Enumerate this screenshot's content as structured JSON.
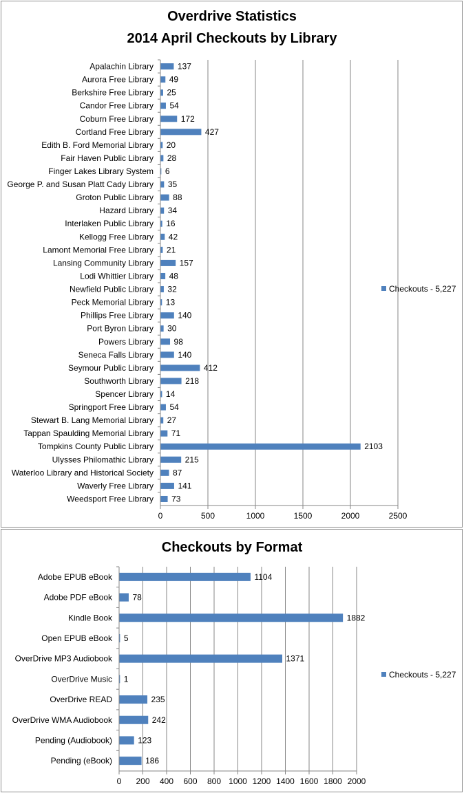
{
  "chart_data": [
    {
      "type": "bar",
      "orientation": "horizontal",
      "title": [
        "Overdrive Statistics",
        "2014 April Checkouts by Library"
      ],
      "categories": [
        "Apalachin Library",
        "Aurora Free Library",
        "Berkshire Free Library",
        "Candor Free Library",
        "Coburn Free Library",
        "Cortland Free Library",
        "Edith B. Ford Memorial Library",
        "Fair Haven Public Library",
        "Finger Lakes Library System",
        "George P. and Susan Platt Cady Library",
        "Groton Public Library",
        "Hazard Library",
        "Interlaken Public Library",
        "Kellogg Free Library",
        "Lamont Memorial Free Library",
        "Lansing Community Library",
        "Lodi Whittier Library",
        "Newfield Public Library",
        "Peck Memorial Library",
        "Phillips Free Library",
        "Port Byron Library",
        "Powers Library",
        "Seneca Falls Library",
        "Seymour Public Library",
        "Southworth Library",
        "Spencer Library",
        "Springport Free Library",
        "Stewart B. Lang Memorial Library",
        "Tappan Spaulding Memorial Library",
        "Tompkins County Public Library",
        "Ulysses Philomathic Library",
        "Waterloo Library and Historical Society",
        "Waverly Free Library",
        "Weedsport Free Library"
      ],
      "series": [
        {
          "name": "Checkouts - 5,227",
          "values": [
            137,
            49,
            25,
            54,
            172,
            427,
            20,
            28,
            6,
            35,
            88,
            34,
            16,
            42,
            21,
            157,
            48,
            32,
            13,
            140,
            30,
            98,
            140,
            412,
            218,
            14,
            54,
            27,
            71,
            2103,
            215,
            87,
            141,
            73
          ]
        }
      ],
      "xlim": [
        0,
        2500
      ],
      "xticks": [
        "0",
        "500",
        "1000",
        "1500",
        "2000",
        "2500"
      ],
      "grid": true,
      "legend": "right",
      "color": "#4f81bd"
    },
    {
      "type": "bar",
      "orientation": "horizontal",
      "title": [
        "Checkouts by Format"
      ],
      "categories": [
        "Adobe EPUB eBook",
        "Adobe PDF eBook",
        "Kindle Book",
        "Open EPUB eBook",
        "OverDrive MP3 Audiobook",
        "OverDrive Music",
        "OverDrive READ",
        "OverDrive WMA Audiobook",
        "Pending (Audiobook)",
        "Pending (eBook)"
      ],
      "series": [
        {
          "name": "Checkouts - 5,227",
          "values": [
            1104,
            78,
            1882,
            5,
            1371,
            1,
            235,
            242,
            123,
            186
          ]
        }
      ],
      "xlim": [
        0,
        2000
      ],
      "xticks": [
        "0",
        "200",
        "400",
        "600",
        "800",
        "1000",
        "1200",
        "1400",
        "1600",
        "1800",
        "2000"
      ],
      "grid": true,
      "legend": "right",
      "color": "#4f81bd"
    }
  ]
}
